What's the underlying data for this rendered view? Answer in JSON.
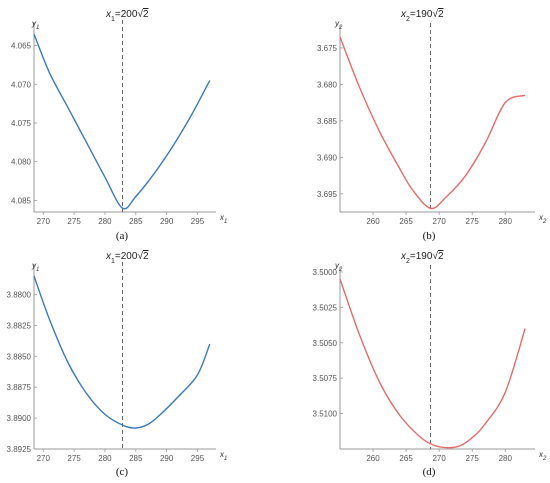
{
  "chart_data": [
    {
      "type": "line",
      "title": "x1=200√2",
      "title_parts": {
        "var": "x",
        "sub": "1",
        "coef": "=200",
        "rad": "2"
      },
      "caption": "(a)",
      "xlabel": "x1",
      "xlabel_parts": {
        "var": "x",
        "sub": "1"
      },
      "ylabel": "y1",
      "ylabel_parts": {
        "var": "y",
        "sub": "1"
      },
      "xlim": [
        268.5,
        298
      ],
      "ylim": [
        4.0635,
        4.0865
      ],
      "y_reversed": true,
      "x_ticks": [
        270,
        275,
        280,
        285,
        290,
        295
      ],
      "y_ticks": [
        4.065,
        4.07,
        4.075,
        4.08,
        4.085
      ],
      "y_tick_labels": [
        "4.065",
        "4.070",
        "4.075",
        "4.080",
        "4.085"
      ],
      "reference_x": 282.84,
      "color": "#3b78c0",
      "series": [
        {
          "x": [
            268.5,
            271,
            274,
            277,
            280,
            282.84,
            285,
            288,
            291,
            294,
            297
          ],
          "y": [
            4.0635,
            4.0685,
            4.073,
            4.0775,
            4.082,
            4.086,
            4.0845,
            4.0815,
            4.078,
            4.074,
            4.0695
          ]
        }
      ]
    },
    {
      "type": "line",
      "title": "x2=190√2",
      "title_parts": {
        "var": "x",
        "sub": "2",
        "coef": "=190",
        "rad": "2"
      },
      "caption": "(b)",
      "xlabel": "x2",
      "xlabel_parts": {
        "var": "x",
        "sub": "2"
      },
      "ylabel": "y2",
      "ylabel_parts": {
        "var": "y",
        "sub": "2"
      },
      "xlim": [
        255,
        284.5
      ],
      "ylim": [
        3.6735,
        3.6975
      ],
      "y_reversed": true,
      "x_ticks": [
        260,
        265,
        270,
        275,
        280
      ],
      "y_ticks": [
        3.675,
        3.68,
        3.685,
        3.69,
        3.695
      ],
      "y_tick_labels": [
        "3.675",
        "3.680",
        "3.685",
        "3.690",
        "3.695"
      ],
      "reference_x": 268.7,
      "color": "#e86b6b",
      "series": [
        {
          "x": [
            255,
            258,
            261,
            264,
            266,
            268.7,
            271,
            274,
            277,
            280,
            283
          ],
          "y": [
            3.6735,
            3.6805,
            3.6865,
            3.6915,
            3.6945,
            3.697,
            3.6955,
            3.6925,
            3.688,
            3.6825,
            3.6815
          ]
        }
      ]
    },
    {
      "type": "line",
      "title": "x1=200√2",
      "title_parts": {
        "var": "x",
        "sub": "1",
        "coef": "=200",
        "rad": "2"
      },
      "caption": "(c)",
      "xlabel": "x1",
      "xlabel_parts": {
        "var": "x",
        "sub": "1"
      },
      "ylabel": "y1",
      "ylabel_parts": {
        "var": "y",
        "sub": "1"
      },
      "xlim": [
        268.5,
        298
      ],
      "ylim": [
        3.8785,
        3.8925
      ],
      "y_reversed": true,
      "x_ticks": [
        270,
        275,
        280,
        285,
        290,
        295
      ],
      "y_ticks": [
        3.88,
        3.8825,
        3.885,
        3.8875,
        3.89,
        3.8925
      ],
      "y_tick_labels": [
        "3.8800",
        "3.8825",
        "3.8850",
        "3.8875",
        "3.8900",
        "3.8925"
      ],
      "reference_x": 282.84,
      "color": "#3b78c0",
      "series": [
        {
          "x": [
            268.5,
            271,
            274,
            277,
            280,
            283,
            285,
            287,
            289,
            292,
            295,
            297
          ],
          "y": [
            3.8785,
            3.882,
            3.8855,
            3.888,
            3.8897,
            3.8906,
            3.8908,
            3.8905,
            3.8897,
            3.8882,
            3.8865,
            3.884
          ]
        }
      ]
    },
    {
      "type": "line",
      "title": "x2=190√2",
      "title_parts": {
        "var": "x",
        "sub": "2",
        "coef": "=190",
        "rad": "2"
      },
      "caption": "(d)",
      "xlabel": "x2",
      "xlabel_parts": {
        "var": "x",
        "sub": "2"
      },
      "ylabel": "y2",
      "ylabel_parts": {
        "var": "y",
        "sub": "2"
      },
      "xlim": [
        255,
        284.5
      ],
      "ylim": [
        3.5005,
        3.5125
      ],
      "y_reversed": true,
      "x_ticks": [
        260,
        265,
        270,
        275,
        280
      ],
      "y_ticks": [
        3.5,
        3.5025,
        3.505,
        3.5075,
        3.51
      ],
      "y_tick_labels": [
        "3.5000",
        "3.5025",
        "3.5050",
        "3.5075",
        "3.5100"
      ],
      "reference_x": 268.7,
      "color": "#e86b6b",
      "series": [
        {
          "x": [
            255,
            258,
            261,
            264,
            267,
            269,
            271,
            273,
            275,
            277,
            280,
            283
          ],
          "y": [
            3.5005,
            3.5045,
            3.5078,
            3.5101,
            3.5116,
            3.5122,
            3.5124,
            3.5123,
            3.5117,
            3.5107,
            3.5085,
            3.504
          ]
        }
      ]
    }
  ]
}
